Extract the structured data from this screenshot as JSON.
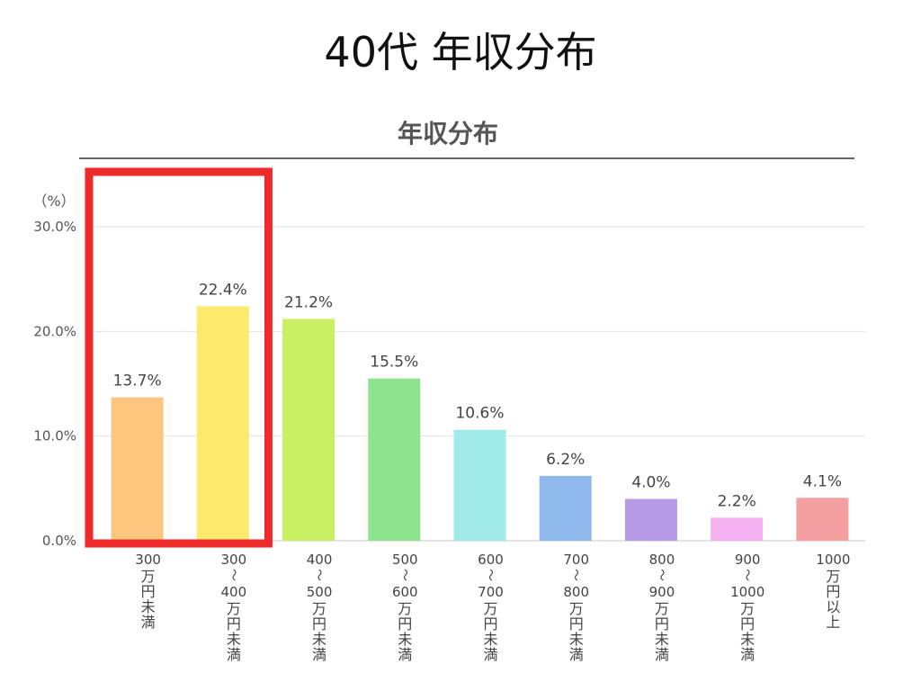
{
  "page": {
    "title": "40代 年収分布"
  },
  "chart_data": {
    "type": "bar",
    "title": "年収分布",
    "ylabel": "（%）",
    "ylim": [
      0,
      30
    ],
    "yticks": [
      0,
      10,
      20,
      30
    ],
    "ytick_labels": [
      "0.0%",
      "10.0%",
      "20.0%",
      "30.0%"
    ],
    "grid": true,
    "categories": [
      [
        "300",
        "万円未満"
      ],
      [
        "300",
        "～",
        "400",
        "万円未満"
      ],
      [
        "400",
        "～",
        "500",
        "万円未満"
      ],
      [
        "500",
        "～",
        "600",
        "万円未満"
      ],
      [
        "600",
        "～",
        "700",
        "万円未満"
      ],
      [
        "700",
        "～",
        "800",
        "万円未満"
      ],
      [
        "800",
        "～",
        "900",
        "万円未満"
      ],
      [
        "900",
        "～",
        "1000",
        "万円未満"
      ],
      [
        "1000",
        "万円以上"
      ]
    ],
    "values": [
      13.7,
      22.4,
      21.2,
      15.5,
      10.6,
      6.2,
      4.0,
      2.2,
      4.1
    ],
    "value_labels": [
      "13.7%",
      "22.4%",
      "21.2%",
      "15.5%",
      "10.6%",
      "6.2%",
      "4.0%",
      "2.2%",
      "4.1%"
    ],
    "colors": [
      "#fdc57e",
      "#fde96c",
      "#c9ef63",
      "#8ee48e",
      "#a0ebea",
      "#8fb8ed",
      "#b89be8",
      "#f4b0f1",
      "#f5a0a0"
    ],
    "highlight": {
      "indices": [
        0,
        1
      ],
      "color": "#ee2a2a"
    }
  }
}
